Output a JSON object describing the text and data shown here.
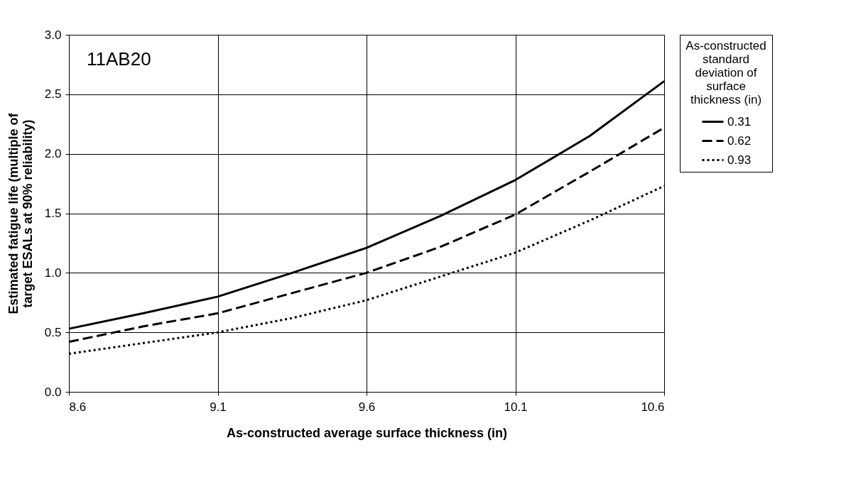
{
  "chart_data": {
    "type": "line",
    "xlabel": "As-constructed average surface thickness (in)",
    "ylabel": "Estimated fatigue life (multiple of target ESALs at 90% reliability)",
    "legend_title": "As-constructed standard deviation of surface thickness (in)",
    "annotations": [
      "11AB20"
    ],
    "x": [
      8.6,
      8.85,
      9.1,
      9.35,
      9.6,
      9.85,
      10.1,
      10.35,
      10.6
    ],
    "series": [
      {
        "name": "0.31",
        "color": "#000000",
        "line_style": "solid",
        "values": [
          0.53,
          0.66,
          0.8,
          1.0,
          1.21,
          1.48,
          1.78,
          2.15,
          2.61
        ]
      },
      {
        "name": "0.62",
        "color": "#000000",
        "line_style": "dashed",
        "values": [
          0.42,
          0.55,
          0.66,
          0.83,
          1.0,
          1.22,
          1.49,
          1.85,
          2.22
        ]
      },
      {
        "name": "0.93",
        "color": "#000000",
        "line_style": "dotted",
        "values": [
          0.32,
          0.41,
          0.5,
          0.62,
          0.77,
          0.97,
          1.17,
          1.44,
          1.73
        ]
      }
    ],
    "xlim": [
      8.6,
      10.6
    ],
    "xticks": [
      8.6,
      9.1,
      9.6,
      10.1,
      10.6
    ],
    "ylim": [
      0,
      3
    ],
    "yticks": [
      {
        "value": 0,
        "label": "0.0"
      },
      {
        "value": 0.5,
        "label": "0.5"
      },
      {
        "value": 1,
        "label": "1.0"
      },
      {
        "value": 1.5,
        "label": "1.5"
      },
      {
        "value": 2,
        "label": "2.0"
      },
      {
        "value": 2.5,
        "label": "2.5"
      },
      {
        "value": 3,
        "label": "3.0"
      }
    ],
    "grid": true,
    "legend": "right"
  }
}
